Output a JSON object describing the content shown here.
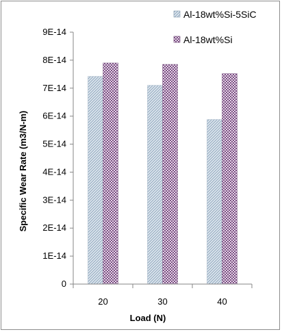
{
  "chart_data": {
    "type": "bar",
    "title": "",
    "xlabel": "Load (N)",
    "ylabel": "Specific Wear Rate (m3/N-m)",
    "categories": [
      "20",
      "30",
      "40"
    ],
    "ylim": [
      0,
      9e-14
    ],
    "yticks": [
      0,
      1e-14,
      2e-14,
      3e-14,
      4e-14,
      5e-14,
      6e-14,
      7e-14,
      8e-14,
      9e-14
    ],
    "ytick_labels": [
      "0",
      "1E-14",
      "2E-14",
      "3E-14",
      "4E-14",
      "5E-14",
      "6E-14",
      "7E-14",
      "8E-14",
      "9E-14"
    ],
    "grid": false,
    "legend_position": "top-right",
    "series": [
      {
        "name": "Al-18wt%Si-5SiC",
        "values": [
          7.42e-14,
          7.1e-14,
          5.88e-14
        ],
        "color": "#b7c7d6",
        "pattern": "diagonal-stripes"
      },
      {
        "name": "Al-18wt%Si",
        "values": [
          7.9e-14,
          7.85e-14,
          7.52e-14
        ],
        "color": "#8e6a94",
        "pattern": "checkerboard"
      }
    ]
  }
}
